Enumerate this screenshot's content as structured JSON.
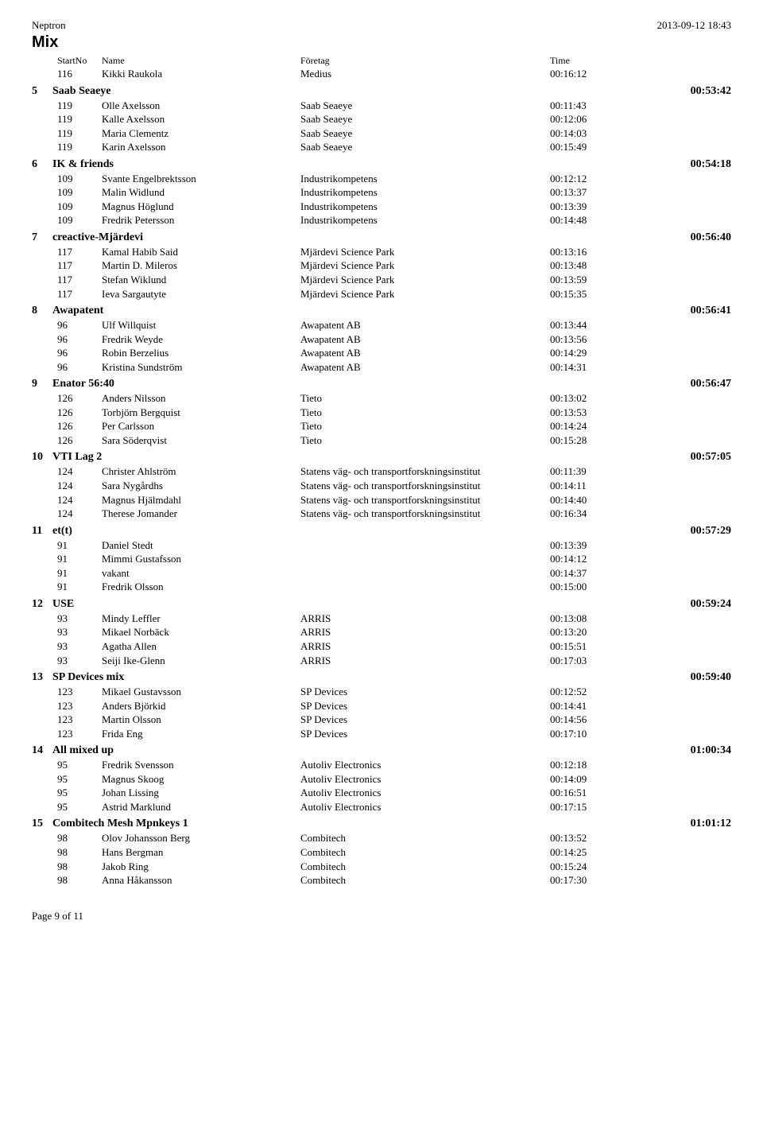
{
  "header": {
    "left": "Neptron",
    "right": "2013-09-12 18:43"
  },
  "title": "Mix",
  "columns": {
    "startno": "StartNo",
    "name": "Name",
    "foretag": "Företag",
    "time": "Time"
  },
  "first_runner": {
    "startno": "116",
    "name": "Kikki Raukola",
    "company": "Medius",
    "time": "00:16:12"
  },
  "teams": [
    {
      "rank": "5",
      "team": "Saab Seaeye",
      "total": "00:53:42",
      "runners": [
        {
          "startno": "119",
          "name": "Olle Axelsson",
          "company": "Saab Seaeye",
          "time": "00:11:43"
        },
        {
          "startno": "119",
          "name": "Kalle Axelsson",
          "company": "Saab Seaeye",
          "time": "00:12:06"
        },
        {
          "startno": "119",
          "name": "Maria Clementz",
          "company": "Saab Seaeye",
          "time": "00:14:03"
        },
        {
          "startno": "119",
          "name": "Karin Axelsson",
          "company": "Saab Seaeye",
          "time": "00:15:49"
        }
      ]
    },
    {
      "rank": "6",
      "team": "IK & friends",
      "total": "00:54:18",
      "runners": [
        {
          "startno": "109",
          "name": "Svante Engelbrektsson",
          "company": "Industrikompetens",
          "time": "00:12:12"
        },
        {
          "startno": "109",
          "name": "Malin Widlund",
          "company": "Industrikompetens",
          "time": "00:13:37"
        },
        {
          "startno": "109",
          "name": "Magnus Höglund",
          "company": "Industrikompetens",
          "time": "00:13:39"
        },
        {
          "startno": "109",
          "name": "Fredrik Petersson",
          "company": "Industrikompetens",
          "time": "00:14:48"
        }
      ]
    },
    {
      "rank": "7",
      "team": "creactive-Mjärdevi",
      "total": "00:56:40",
      "runners": [
        {
          "startno": "117",
          "name": "Kamal Habib Said",
          "company": "Mjärdevi Science Park",
          "time": "00:13:16"
        },
        {
          "startno": "117",
          "name": "Martin D. Mileros",
          "company": "Mjärdevi Science Park",
          "time": "00:13:48"
        },
        {
          "startno": "117",
          "name": "Stefan Wiklund",
          "company": "Mjärdevi Science Park",
          "time": "00:13:59"
        },
        {
          "startno": "117",
          "name": "Ieva Sargautyte",
          "company": "Mjärdevi Science Park",
          "time": "00:15:35"
        }
      ]
    },
    {
      "rank": "8",
      "team": "Awapatent",
      "total": "00:56:41",
      "runners": [
        {
          "startno": "96",
          "name": "Ulf Willquist",
          "company": "Awapatent AB",
          "time": "00:13:44"
        },
        {
          "startno": "96",
          "name": "Fredrik Weyde",
          "company": "Awapatent AB",
          "time": "00:13:56"
        },
        {
          "startno": "96",
          "name": "Robin Berzelius",
          "company": "Awapatent AB",
          "time": "00:14:29"
        },
        {
          "startno": "96",
          "name": "Kristina Sundström",
          "company": "Awapatent AB",
          "time": "00:14:31"
        }
      ]
    },
    {
      "rank": "9",
      "team": "Enator 56:40",
      "total": "00:56:47",
      "runners": [
        {
          "startno": "126",
          "name": "Anders Nilsson",
          "company": "Tieto",
          "time": "00:13:02"
        },
        {
          "startno": "126",
          "name": "Torbjörn Bergquist",
          "company": "Tieto",
          "time": "00:13:53"
        },
        {
          "startno": "126",
          "name": "Per Carlsson",
          "company": "Tieto",
          "time": "00:14:24"
        },
        {
          "startno": "126",
          "name": "Sara Söderqvist",
          "company": "Tieto",
          "time": "00:15:28"
        }
      ]
    },
    {
      "rank": "10",
      "team": "VTI Lag 2",
      "total": "00:57:05",
      "runners": [
        {
          "startno": "124",
          "name": "Christer Ahlström",
          "company": "Statens väg- och transportforskningsinstitut",
          "time": "00:11:39"
        },
        {
          "startno": "124",
          "name": "Sara Nygårdhs",
          "company": "Statens väg- och transportforskningsinstitut",
          "time": "00:14:11"
        },
        {
          "startno": "124",
          "name": "Magnus Hjälmdahl",
          "company": "Statens väg- och transportforskningsinstitut",
          "time": "00:14:40"
        },
        {
          "startno": "124",
          "name": "Therese Jomander",
          "company": "Statens väg- och transportforskningsinstitut",
          "time": "00:16:34"
        }
      ]
    },
    {
      "rank": "11",
      "team": "et(t)",
      "total": "00:57:29",
      "runners": [
        {
          "startno": "91",
          "name": "Daniel Stedt",
          "company": "",
          "time": "00:13:39"
        },
        {
          "startno": "91",
          "name": "Mimmi Gustafsson",
          "company": "",
          "time": "00:14:12"
        },
        {
          "startno": "91",
          "name": "vakant",
          "company": "",
          "time": "00:14:37"
        },
        {
          "startno": "91",
          "name": "Fredrik Olsson",
          "company": "",
          "time": "00:15:00"
        }
      ]
    },
    {
      "rank": "12",
      "team": "USE",
      "total": "00:59:24",
      "runners": [
        {
          "startno": "93",
          "name": "Mindy Leffler",
          "company": "ARRIS",
          "time": "00:13:08"
        },
        {
          "startno": "93",
          "name": "Mikael Norbäck",
          "company": "ARRIS",
          "time": "00:13:20"
        },
        {
          "startno": "93",
          "name": "Agatha Allen",
          "company": "ARRIS",
          "time": "00:15:51"
        },
        {
          "startno": "93",
          "name": "Seiji Ike-Glenn",
          "company": "ARRIS",
          "time": "00:17:03"
        }
      ]
    },
    {
      "rank": "13",
      "team": "SP Devices mix",
      "total": "00:59:40",
      "runners": [
        {
          "startno": "123",
          "name": "Mikael Gustavsson",
          "company": "SP Devices",
          "time": "00:12:52"
        },
        {
          "startno": "123",
          "name": "Anders Björkid",
          "company": "SP Devices",
          "time": "00:14:41"
        },
        {
          "startno": "123",
          "name": "Martin Olsson",
          "company": "SP Devices",
          "time": "00:14:56"
        },
        {
          "startno": "123",
          "name": "Frida Eng",
          "company": "SP Devices",
          "time": "00:17:10"
        }
      ]
    },
    {
      "rank": "14",
      "team": "All mixed up",
      "total": "01:00:34",
      "runners": [
        {
          "startno": "95",
          "name": "Fredrik Svensson",
          "company": "Autoliv Electronics",
          "time": "00:12:18"
        },
        {
          "startno": "95",
          "name": "Magnus Skoog",
          "company": "Autoliv Electronics",
          "time": "00:14:09"
        },
        {
          "startno": "95",
          "name": "Johan Lissing",
          "company": "Autoliv Electronics",
          "time": "00:16:51"
        },
        {
          "startno": "95",
          "name": "Astrid Marklund",
          "company": "Autoliv Electronics",
          "time": "00:17:15"
        }
      ]
    },
    {
      "rank": "15",
      "team": "Combitech Mesh Mpnkeys 1",
      "total": "01:01:12",
      "runners": [
        {
          "startno": "98",
          "name": "Olov Johansson Berg",
          "company": "Combitech",
          "time": "00:13:52"
        },
        {
          "startno": "98",
          "name": "Hans Bergman",
          "company": "Combitech",
          "time": "00:14:25"
        },
        {
          "startno": "98",
          "name": "Jakob Ring",
          "company": "Combitech",
          "time": "00:15:24"
        },
        {
          "startno": "98",
          "name": "Anna Håkansson",
          "company": "Combitech",
          "time": "00:17:30"
        }
      ]
    }
  ],
  "footer": "Page 9 of 11"
}
